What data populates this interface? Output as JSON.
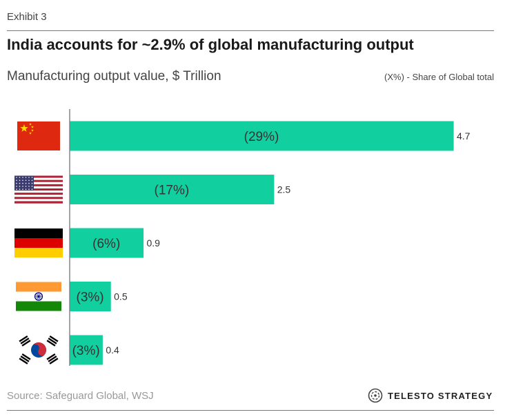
{
  "header": {
    "exhibit": "Exhibit 3",
    "title": "India accounts for ~2.9% of global manufacturing output",
    "subtitle": "Manufacturing output value, $ Trillion",
    "share_note": "(X%) - Share of Global total"
  },
  "footer": {
    "source": "Source: Safeguard Global, WSJ",
    "brand": "TELESTO STRATEGY"
  },
  "colors": {
    "bar": "#12cfa0",
    "axis": "#666666"
  },
  "chart_data": {
    "type": "bar",
    "orientation": "horizontal",
    "categories": [
      "China",
      "United States",
      "Germany",
      "India",
      "South Korea"
    ],
    "category_icons": [
      "china-flag-icon",
      "usa-flag-icon",
      "germany-flag-icon",
      "india-flag-icon",
      "south-korea-flag-icon"
    ],
    "values": [
      4.7,
      2.5,
      0.9,
      0.5,
      0.4
    ],
    "value_labels": [
      "4.7",
      "2.5",
      "0.9",
      "0.5",
      "0.4"
    ],
    "share_labels": [
      "(29%)",
      "(17%)",
      "(6%)",
      "(3%)",
      "(3%)"
    ],
    "title": "India accounts for ~2.9% of global manufacturing output",
    "xlabel": "",
    "ylabel": "",
    "xlim": [
      0,
      4.7
    ],
    "grid": false,
    "legend": "none"
  }
}
